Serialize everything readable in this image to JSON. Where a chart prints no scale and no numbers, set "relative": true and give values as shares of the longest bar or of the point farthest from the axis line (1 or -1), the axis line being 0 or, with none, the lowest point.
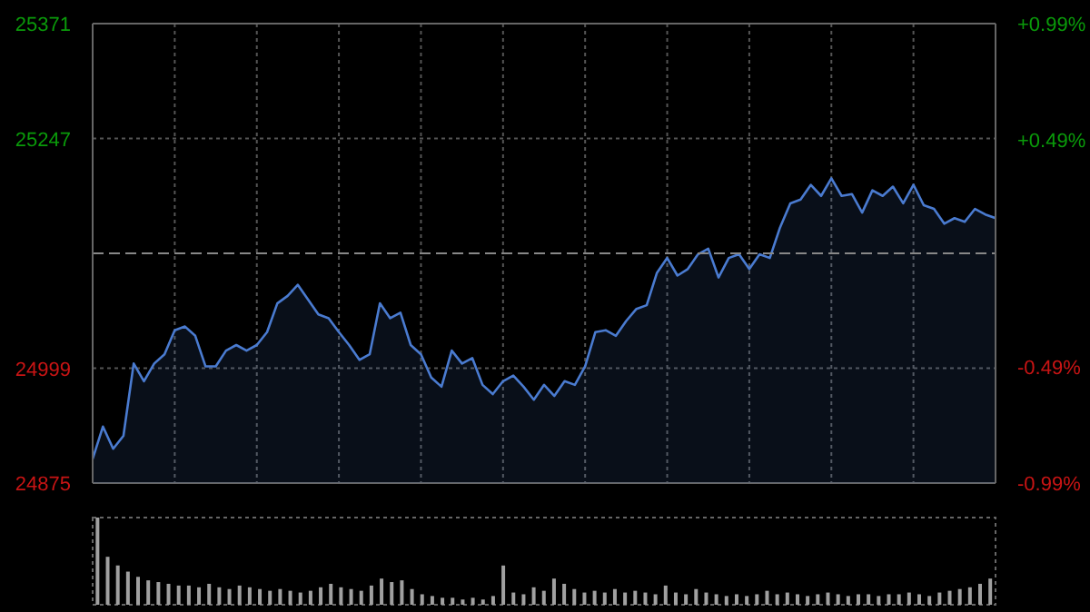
{
  "chart_data": [
    {
      "type": "area",
      "categories": [
        null,
        null,
        null,
        null,
        null,
        null,
        null,
        null,
        null,
        null,
        null,
        null,
        null,
        null,
        null,
        null,
        null,
        null,
        null,
        null,
        null,
        null,
        null,
        null,
        null,
        null,
        null,
        null,
        null,
        null,
        null,
        null,
        null,
        null,
        null,
        null,
        null,
        null,
        null,
        null,
        null,
        null,
        null,
        null,
        null,
        null,
        null,
        null,
        null,
        null,
        null,
        null,
        null,
        null,
        null,
        null,
        null,
        null,
        null,
        null,
        null,
        null,
        null,
        null,
        null,
        null,
        null,
        null,
        null,
        null,
        null,
        null,
        null,
        null,
        null,
        null,
        null,
        null,
        null,
        null,
        null,
        null,
        null,
        null,
        null,
        null,
        null,
        null,
        null
      ],
      "series": [
        {
          "color": "#4a7bd0",
          "values": [
            24901,
            24936,
            24912,
            24926,
            25004,
            24985,
            25004,
            25014,
            25040,
            25044,
            25034,
            25001,
            25001,
            25018,
            25024,
            25018,
            25024,
            25038,
            25069,
            25077,
            25089,
            25073,
            25057,
            25053,
            25038,
            25024,
            25008,
            25014,
            25069,
            25053,
            25059,
            25024,
            25014,
            24989,
            24979,
            25018,
            25004,
            25010,
            24981,
            24971,
            24985,
            24991,
            24979,
            24965,
            24981,
            24969,
            24985,
            24981,
            25001,
            25038,
            25040,
            25034,
            25050,
            25063,
            25067,
            25102,
            25118,
            25099,
            25106,
            25122,
            25128,
            25097,
            25118,
            25122,
            25106,
            25122,
            25118,
            25151,
            25177,
            25181,
            25197,
            25185,
            25204,
            25185,
            25187,
            25167,
            25191,
            25185,
            25195,
            25177,
            25197,
            25175,
            25171,
            25155,
            25161,
            25157,
            25171,
            25165,
            25161
          ]
        }
      ],
      "ylim": [
        24875,
        25371
      ],
      "yticks": [
        24875,
        24999,
        25247,
        25371
      ],
      "y2lim": [
        -0.99,
        0.99
      ],
      "y2ticks": [
        {
          "value": -0.99,
          "label": "-0.99%"
        },
        {
          "value": -0.49,
          "label": "-0.49%"
        },
        {
          "value": 0.49,
          "label": "+0.49%"
        },
        {
          "value": 0.99,
          "label": "+0.99%"
        }
      ],
      "ref_lines": [
        {
          "axis": "y",
          "value": 25123,
          "line_style": "dashed"
        }
      ],
      "grid": true,
      "tick_labels": "y"
    },
    {
      "type": "bar",
      "relative": true,
      "color": "#a0a0a0",
      "categories": [
        null,
        null,
        null,
        null,
        null,
        null,
        null,
        null,
        null,
        null,
        null,
        null,
        null,
        null,
        null,
        null,
        null,
        null,
        null,
        null,
        null,
        null,
        null,
        null,
        null,
        null,
        null,
        null,
        null,
        null,
        null,
        null,
        null,
        null,
        null,
        null,
        null,
        null,
        null,
        null,
        null,
        null,
        null,
        null,
        null,
        null,
        null,
        null,
        null,
        null,
        null,
        null,
        null,
        null,
        null,
        null,
        null,
        null,
        null,
        null,
        null,
        null,
        null,
        null,
        null,
        null,
        null,
        null,
        null,
        null,
        null,
        null,
        null,
        null,
        null,
        null,
        null,
        null,
        null,
        null,
        null,
        null,
        null,
        null,
        null,
        null,
        null,
        null,
        null
      ],
      "values": [
        1,
        0.55,
        0.45,
        0.38,
        0.32,
        0.28,
        0.26,
        0.24,
        0.22,
        0.22,
        0.2,
        0.24,
        0.2,
        0.18,
        0.22,
        0.2,
        0.18,
        0.16,
        0.18,
        0.16,
        0.14,
        0.16,
        0.2,
        0.24,
        0.2,
        0.18,
        0.16,
        0.22,
        0.3,
        0.26,
        0.28,
        0.18,
        0.12,
        0.1,
        0.08,
        0.08,
        0.06,
        0.08,
        0.06,
        0.1,
        0.45,
        0.14,
        0.12,
        0.2,
        0.16,
        0.3,
        0.24,
        0.18,
        0.14,
        0.16,
        0.14,
        0.18,
        0.14,
        0.16,
        0.14,
        0.12,
        0.22,
        0.14,
        0.12,
        0.18,
        0.14,
        0.12,
        0.1,
        0.12,
        0.1,
        0.12,
        0.16,
        0.12,
        0.14,
        0.12,
        0.1,
        0.12,
        0.14,
        0.12,
        0.1,
        0.12,
        0.12,
        0.1,
        0.12,
        0.12,
        0.14,
        0.12,
        0.1,
        0.14,
        0.16,
        0.18,
        0.2,
        0.24,
        0.3
      ]
    }
  ]
}
